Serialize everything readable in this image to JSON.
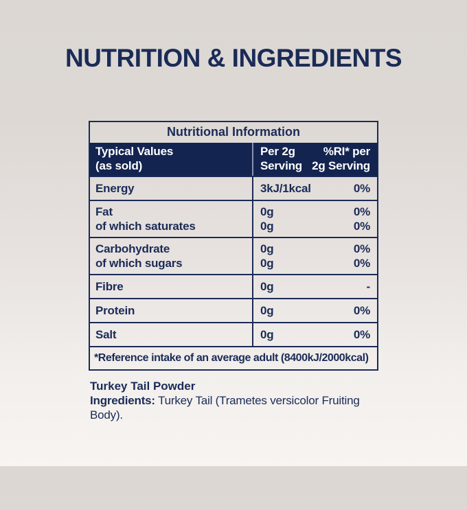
{
  "page": {
    "heading": "NUTRITION & INGREDIENTS"
  },
  "colors": {
    "navy_text": "#1b2b57",
    "header_bg": "#132450",
    "header_text": "#ffffff",
    "background_top": "#dcd7d3",
    "background_bottom": "#f7f4f1"
  },
  "table": {
    "title": "Nutritional Information",
    "header": {
      "label": [
        "Typical Values",
        "(as sold)"
      ],
      "per_serving": [
        "Per 2g",
        "Serving"
      ],
      "ri": [
        "%RI* per",
        "2g Serving"
      ]
    },
    "rows": [
      {
        "label": [
          "Energy"
        ],
        "values": [
          "3kJ/1kcal"
        ],
        "ri": [
          "0%"
        ]
      },
      {
        "label": [
          "Fat",
          "of which saturates"
        ],
        "values": [
          "0g",
          "0g"
        ],
        "ri": [
          "0%",
          "0%"
        ]
      },
      {
        "label": [
          "Carbohydrate",
          "of which sugars"
        ],
        "values": [
          "0g",
          "0g"
        ],
        "ri": [
          "0%",
          "0%"
        ]
      },
      {
        "label": [
          "Fibre"
        ],
        "values": [
          "0g"
        ],
        "ri": [
          "-"
        ]
      },
      {
        "label": [
          "Protein"
        ],
        "values": [
          "0g"
        ],
        "ri": [
          "0%"
        ]
      },
      {
        "label": [
          "Salt"
        ],
        "values": [
          "0g"
        ],
        "ri": [
          "0%"
        ]
      }
    ],
    "footnote": "*Reference intake of an average adult (8400kJ/2000kcal)"
  },
  "ingredients": {
    "product_name": "Turkey Tail Powder",
    "label": "Ingredients:",
    "text": " Turkey Tail (Trametes versicolor Fruiting Body)."
  }
}
